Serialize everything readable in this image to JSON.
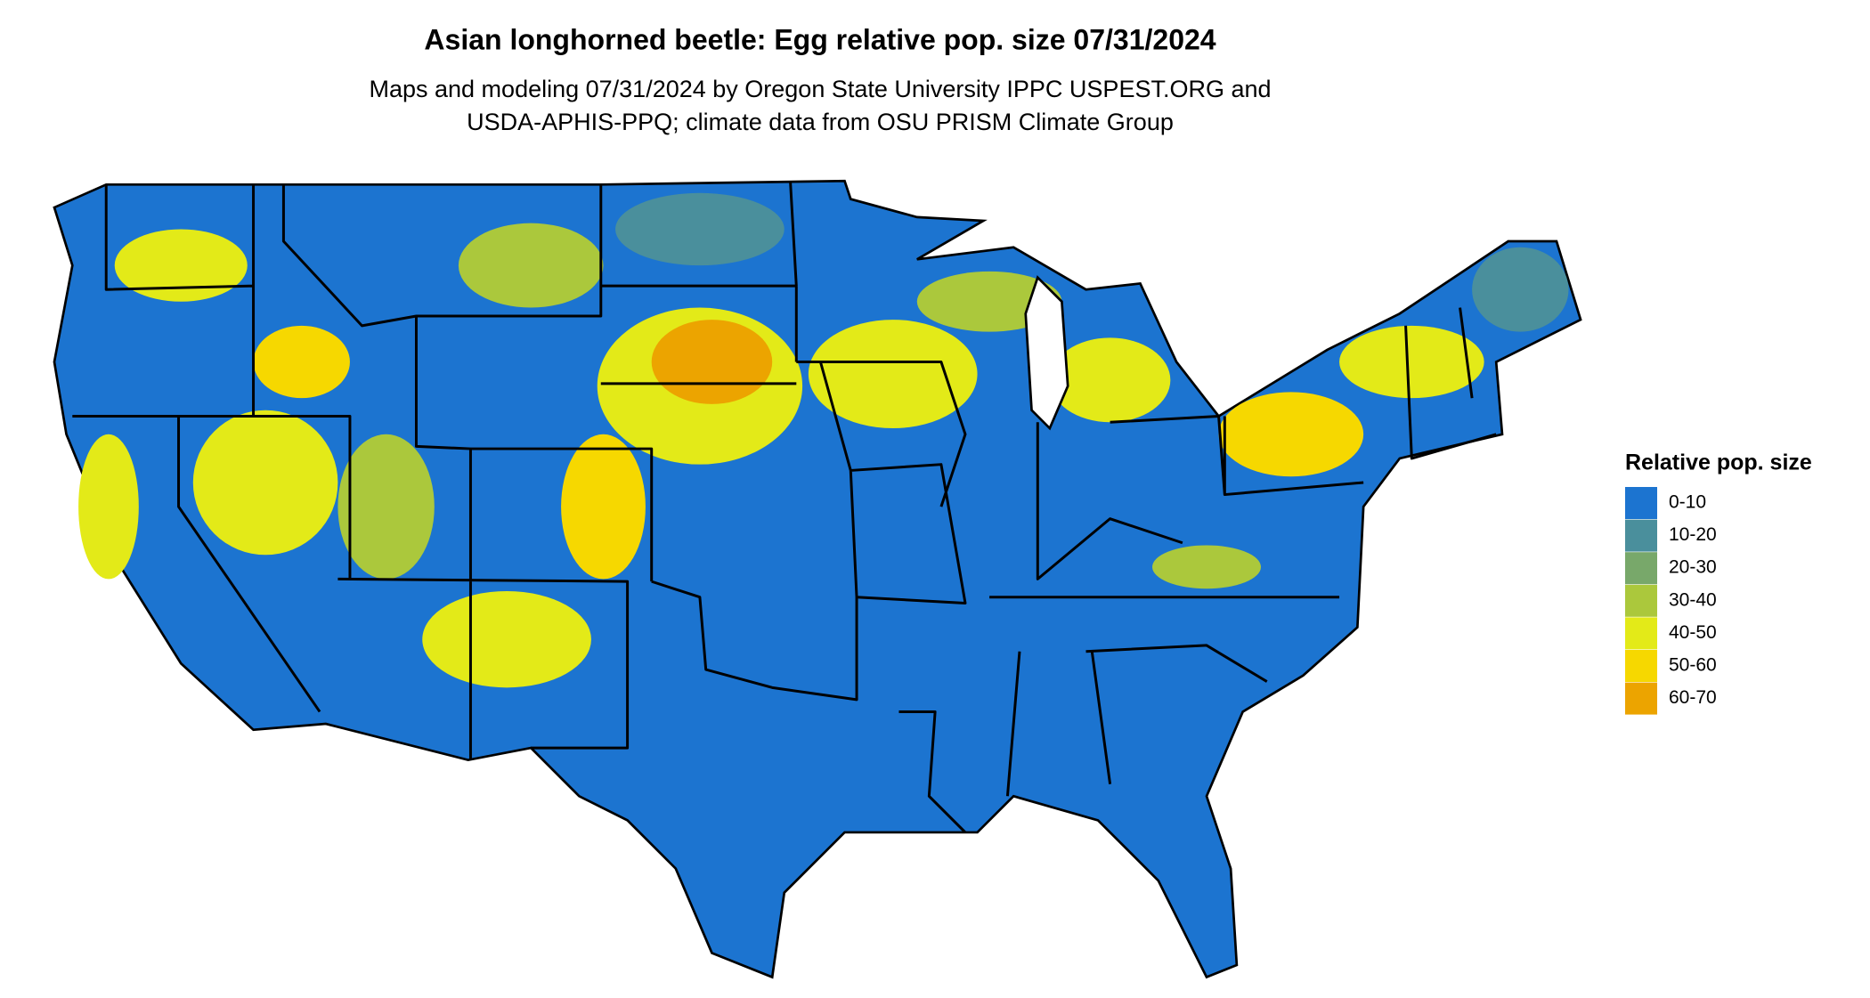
{
  "title": "Asian longhorned beetle: Egg relative pop. size 07/31/2024",
  "subtitle": [
    "Maps and modeling 07/31/2024 by Oregon State University IPPC USPEST.ORG and",
    "USDA-APHIS-PPQ; climate data from OSU PRISM Climate Group"
  ],
  "legend": {
    "title": "Relative pop. size",
    "items": [
      {
        "label": "0-10",
        "color": "#1c74d0"
      },
      {
        "label": "10-20",
        "color": "#4a8f9c"
      },
      {
        "label": "20-30",
        "color": "#78a86a"
      },
      {
        "label": "30-40",
        "color": "#abc83c"
      },
      {
        "label": "40-50",
        "color": "#e3ea18"
      },
      {
        "label": "50-60",
        "color": "#f6d800"
      },
      {
        "label": "60-70",
        "color": "#eca400"
      }
    ]
  }
}
